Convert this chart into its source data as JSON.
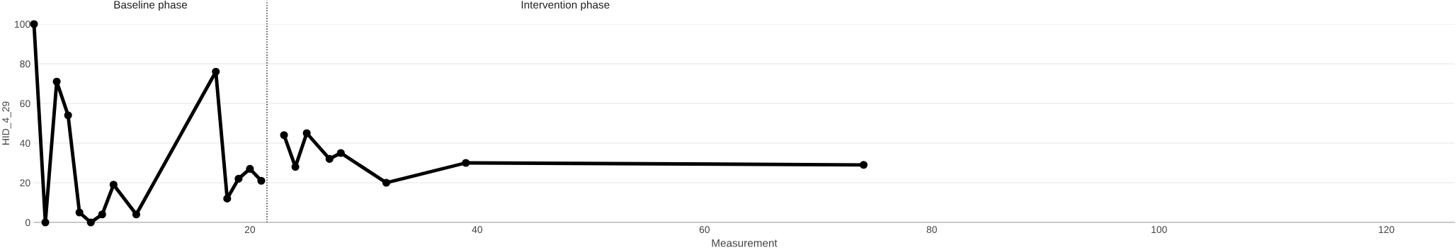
{
  "chart_data": {
    "type": "line",
    "xlabel": "Measurement",
    "ylabel": "HID_4_29",
    "series": [
      {
        "color": "#000000",
        "x": [
          1,
          2,
          3,
          4,
          5,
          6,
          7,
          8,
          10,
          17,
          18,
          19,
          20,
          21
        ],
        "values": [
          100,
          0,
          71,
          54,
          5,
          0,
          4,
          19,
          4,
          76,
          12,
          22,
          27,
          21
        ]
      },
      {
        "color": "#000000",
        "x": [
          23,
          24,
          25,
          27,
          28,
          32,
          39,
          74
        ],
        "values": [
          44,
          28,
          45,
          32,
          35,
          20,
          30,
          29
        ]
      }
    ],
    "xlim": [
      1,
      126
    ],
    "xticks": [
      20,
      40,
      60,
      80,
      100,
      120
    ],
    "ylim": [
      0,
      100
    ],
    "yticks": [
      0,
      20,
      40,
      60,
      80,
      100
    ],
    "ref_lines": [
      {
        "axis": "x",
        "value": 21.5,
        "color": "#000000",
        "line_style": "dotted"
      }
    ],
    "annotations": [
      "Baseline phase",
      "Intervention phase"
    ],
    "grid": "y",
    "marker": "circle",
    "line_style": "solid"
  }
}
